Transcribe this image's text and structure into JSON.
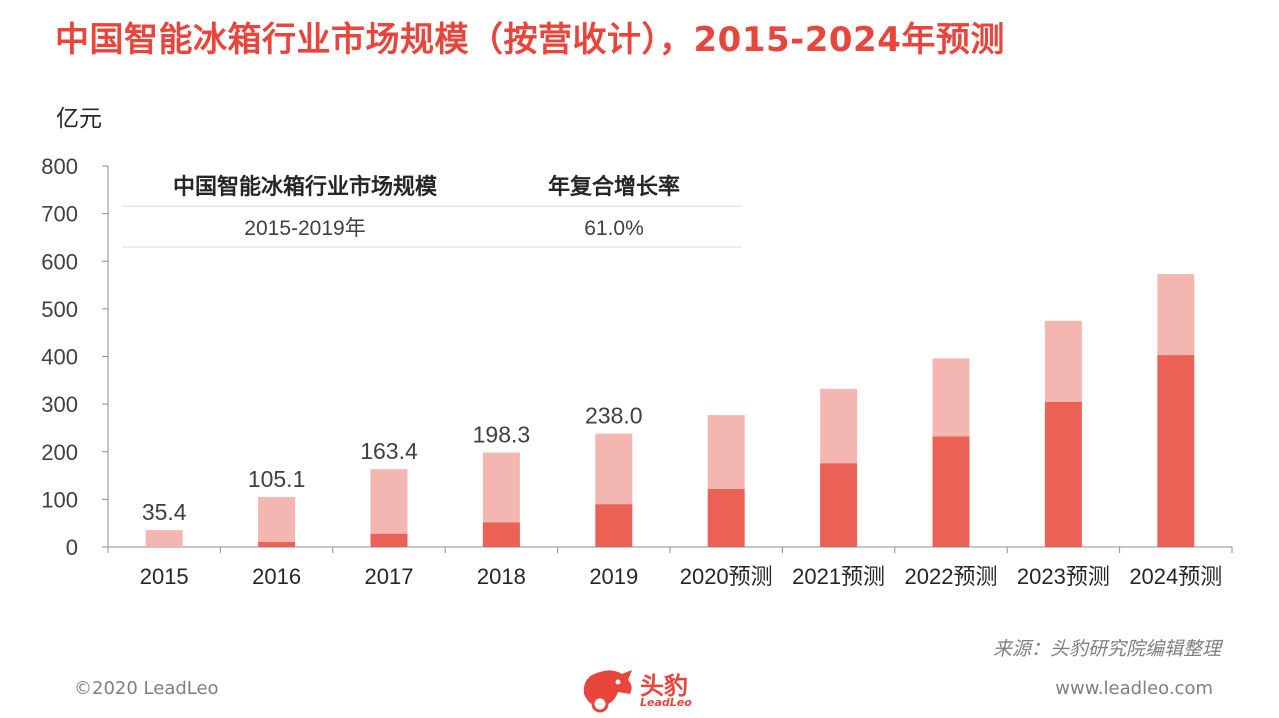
{
  "title": "中国智能冰箱行业市场规模（按营收计），2015-2024年预测",
  "source": "来源：头豹研究院编辑整理",
  "copyright": "©2020 LeadLeo",
  "website": "www.leadleo.com",
  "logo": {
    "name": "头豹",
    "sub": "LeadLeo"
  },
  "colors": {
    "title": "#e8453c",
    "bar_top": "#f4b6b1",
    "bar_bottom": "#ec6155",
    "text": "#404040"
  },
  "chart_data": {
    "type": "bar",
    "stacked": true,
    "ylabel": "亿元",
    "ylim": [
      0,
      800
    ],
    "yticks": [
      0,
      100,
      200,
      300,
      400,
      500,
      600,
      700,
      800
    ],
    "categories": [
      "2015",
      "2016",
      "2017",
      "2018",
      "2019",
      "2020预测",
      "2021预测",
      "2022预测",
      "2023预测",
      "2024预测"
    ],
    "series": [
      {
        "values": [
          0,
          11,
          28,
          52,
          90,
          122,
          176,
          232,
          305,
          403
        ]
      },
      {
        "values": [
          35.4,
          94.1,
          135.4,
          146.3,
          148,
          155,
          156,
          164,
          170,
          170
        ]
      }
    ],
    "totals": [
      35.4,
      105.1,
      163.4,
      198.3,
      238,
      277,
      332,
      396,
      475,
      573
    ],
    "data_labels": [
      "35.4",
      "105.1",
      "163.4",
      "198.3",
      "238.0",
      "",
      "",
      "",
      "",
      ""
    ],
    "cagr_table": {
      "headers": [
        "中国智能冰箱行业市场规模",
        "年复合增长率"
      ],
      "rows": [
        [
          "2015-2019年",
          "61.0%"
        ]
      ]
    }
  }
}
